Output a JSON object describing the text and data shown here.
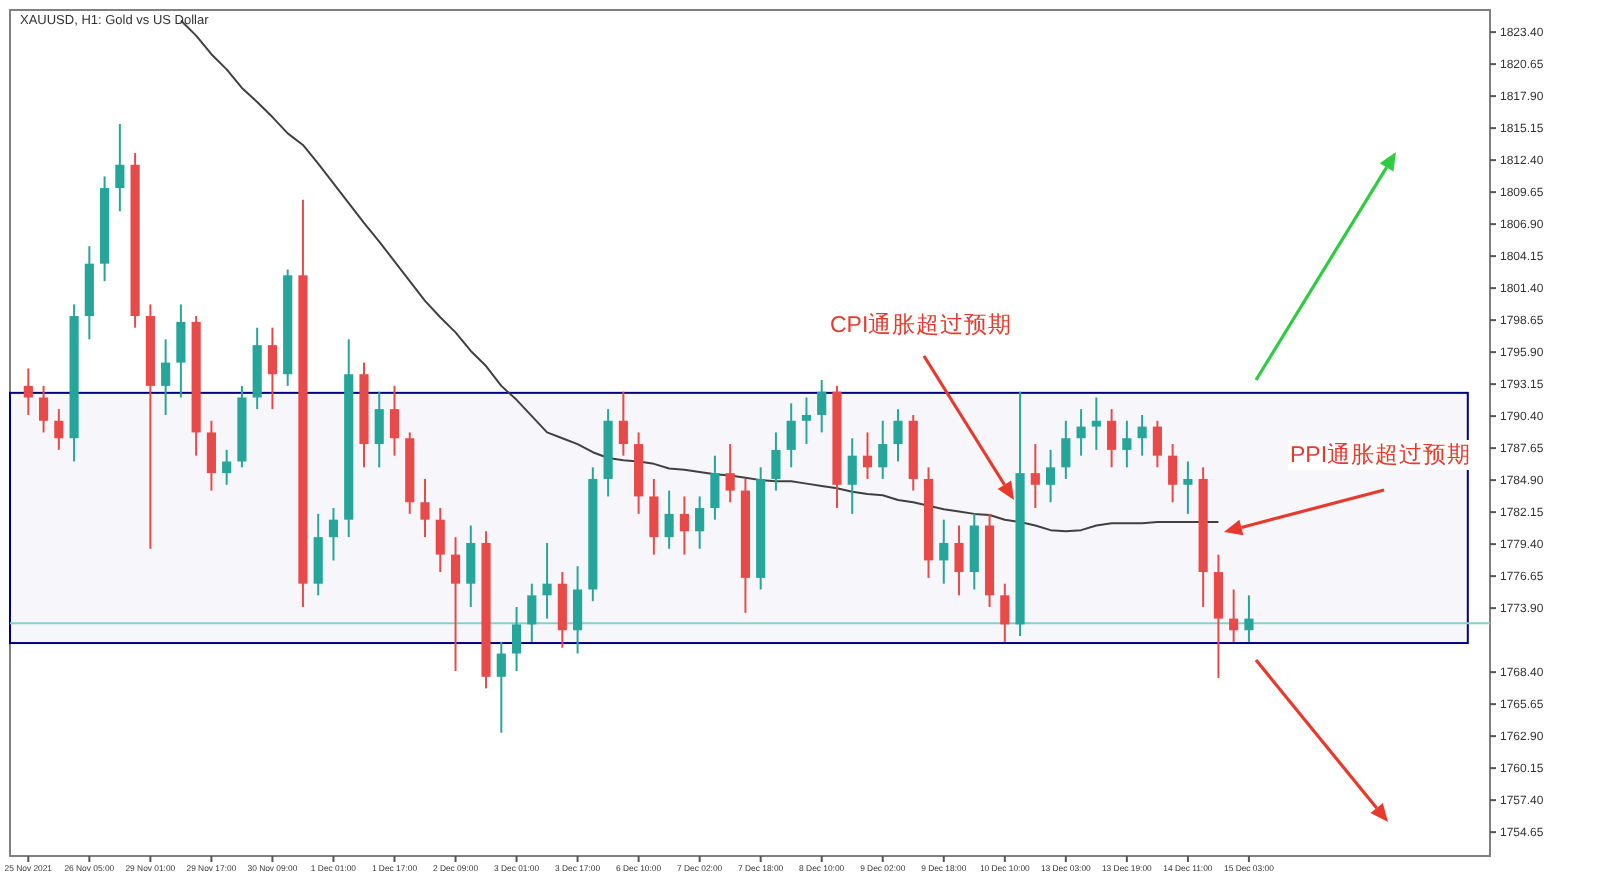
{
  "chart_data": {
    "type": "candlestick",
    "title": "XAUUSD, H1: Gold vs US Dollar",
    "categories": [
      "25 Nov 2021",
      null,
      null,
      null,
      "26 Nov 05:00",
      null,
      null,
      null,
      "29 Nov 01:00",
      null,
      null,
      null,
      "29 Nov 17:00",
      null,
      null,
      null,
      "30 Nov 09:00",
      null,
      null,
      null,
      "1 Dec 01:00",
      null,
      null,
      null,
      "1 Dec 17:00",
      null,
      null,
      null,
      "2 Dec 09:00",
      null,
      null,
      null,
      "3 Dec 01:00",
      null,
      null,
      null,
      "3 Dec 17:00",
      null,
      null,
      null,
      "6 Dec 10:00",
      null,
      null,
      null,
      "7 Dec 02:00",
      null,
      null,
      null,
      "7 Dec 18:00",
      null,
      null,
      null,
      "8 Dec 10:00",
      null,
      null,
      null,
      "9 Dec 02:00",
      null,
      null,
      null,
      "9 Dec 18:00",
      null,
      null,
      null,
      "10 Dec 10:00",
      null,
      null,
      null,
      "13 Dec 03:00",
      null,
      null,
      null,
      "13 Dec 19:00",
      null,
      null,
      null,
      "14 Dec 11:00",
      null,
      null,
      null,
      "15 Dec 03:00",
      null,
      null,
      null,
      null,
      null,
      null,
      null,
      null,
      null,
      null,
      null,
      null,
      null,
      null,
      null
    ],
    "ohlc": [
      [
        1793,
        1794.5,
        1790.5,
        1792
      ],
      [
        1792,
        1793,
        1789,
        1790
      ],
      [
        1790,
        1791,
        1787.5,
        1788.5
      ],
      [
        1788.5,
        1800,
        1786.5,
        1799
      ],
      [
        1799,
        1805,
        1797,
        1803.5
      ],
      [
        1803.5,
        1811,
        1802,
        1810
      ],
      [
        1810,
        1815.5,
        1808,
        1812
      ],
      [
        1812,
        1813,
        1798,
        1799
      ],
      [
        1799,
        1800,
        1779,
        1793
      ],
      [
        1793,
        1797,
        1790.5,
        1795
      ],
      [
        1795,
        1800,
        1792,
        1798.5
      ],
      [
        1798.5,
        1799,
        1787,
        1789
      ],
      [
        1789,
        1790,
        1784,
        1785.5
      ],
      [
        1785.5,
        1787.5,
        1784.5,
        1786.5
      ],
      [
        1786.5,
        1793,
        1786,
        1792
      ],
      [
        1792,
        1798,
        1791,
        1796.5
      ],
      [
        1796.5,
        1798,
        1791,
        1794
      ],
      [
        1794,
        1803,
        1793,
        1802.5
      ],
      [
        1802.5,
        1809,
        1774,
        1776
      ],
      [
        1776,
        1782,
        1775,
        1780
      ],
      [
        1780,
        1782.5,
        1778,
        1781.5
      ],
      [
        1781.5,
        1797,
        1780,
        1794
      ],
      [
        1794,
        1795,
        1786,
        1788
      ],
      [
        1788,
        1792.5,
        1786,
        1791
      ],
      [
        1791,
        1793,
        1787,
        1788.5
      ],
      [
        1788.5,
        1789,
        1782,
        1783
      ],
      [
        1783,
        1785,
        1780,
        1781.5
      ],
      [
        1781.5,
        1782.5,
        1777,
        1778.5
      ],
      [
        1778.5,
        1780,
        1768.5,
        1776
      ],
      [
        1776,
        1781,
        1774,
        1779.5
      ],
      [
        1779.5,
        1780.5,
        1767,
        1768
      ],
      [
        1768,
        1771,
        1763.2,
        1770
      ],
      [
        1770,
        1774,
        1768.5,
        1772.5
      ],
      [
        1772.5,
        1776,
        1771,
        1775
      ],
      [
        1775,
        1779.5,
        1773,
        1776
      ],
      [
        1776,
        1777,
        1770.5,
        1772
      ],
      [
        1772,
        1777.5,
        1770,
        1775.5
      ],
      [
        1775.5,
        1786,
        1774.5,
        1785
      ],
      [
        1785,
        1791,
        1783.5,
        1790
      ],
      [
        1790,
        1792.5,
        1787,
        1788
      ],
      [
        1788,
        1789,
        1782,
        1783.5
      ],
      [
        1783.5,
        1785,
        1778.5,
        1780
      ],
      [
        1780,
        1784,
        1779,
        1782
      ],
      [
        1782,
        1783.5,
        1778.5,
        1780.5
      ],
      [
        1780.5,
        1783.5,
        1779,
        1782.5
      ],
      [
        1782.5,
        1787,
        1781.5,
        1785.5
      ],
      [
        1785.5,
        1788,
        1783,
        1784
      ],
      [
        1784,
        1785,
        1773.5,
        1776.5
      ],
      [
        1776.5,
        1786,
        1775.5,
        1785
      ],
      [
        1785,
        1789,
        1784,
        1787.5
      ],
      [
        1787.5,
        1791.5,
        1786,
        1790
      ],
      [
        1790,
        1792,
        1788,
        1790.5
      ],
      [
        1790.5,
        1793.5,
        1789,
        1792.5
      ],
      [
        1792.5,
        1793,
        1782.5,
        1784.5
      ],
      [
        1784.5,
        1788.5,
        1782,
        1787
      ],
      [
        1787,
        1789,
        1785,
        1786
      ],
      [
        1786,
        1790,
        1785,
        1788
      ],
      [
        1788,
        1791,
        1786.5,
        1790
      ],
      [
        1790,
        1790.5,
        1784,
        1785
      ],
      [
        1785,
        1786,
        1776.5,
        1778
      ],
      [
        1778,
        1781.5,
        1776,
        1779.5
      ],
      [
        1779.5,
        1781,
        1775,
        1777
      ],
      [
        1777,
        1782,
        1775.5,
        1781
      ],
      [
        1781,
        1782,
        1774,
        1775
      ],
      [
        1775,
        1776,
        1771,
        1772.5
      ],
      [
        1772.5,
        1792.5,
        1771.5,
        1785.5
      ],
      [
        1785.5,
        1788,
        1782.5,
        1784.5
      ],
      [
        1784.5,
        1787.5,
        1783,
        1786
      ],
      [
        1786,
        1790,
        1785,
        1788.5
      ],
      [
        1788.5,
        1791,
        1787,
        1789.5
      ],
      [
        1789.5,
        1792,
        1787.5,
        1790
      ],
      [
        1790,
        1791,
        1786,
        1787.5
      ],
      [
        1787.5,
        1790,
        1786,
        1788.5
      ],
      [
        1788.5,
        1790.5,
        1787,
        1789.5
      ],
      [
        1789.5,
        1790,
        1786,
        1787
      ],
      [
        1787,
        1788,
        1783,
        1784.5
      ],
      [
        1784.5,
        1786.5,
        1782,
        1785
      ],
      [
        1785,
        1786,
        1774,
        1777
      ],
      [
        1777,
        1778.5,
        1767.9,
        1773
      ],
      [
        1773,
        1775.5,
        1771,
        1772
      ],
      [
        1772,
        1775,
        1771,
        1773
      ],
      null,
      null,
      null,
      null,
      null,
      null,
      null,
      null,
      null,
      null,
      null,
      null,
      null,
      null,
      null
    ],
    "series": [
      {
        "type": "line",
        "color": "#404040",
        "values": [
          null,
          null,
          null,
          null,
          null,
          null,
          null,
          null,
          null,
          null,
          1824.4,
          1823.1,
          1821.5,
          1820.2,
          1818.6,
          1817.4,
          1816.1,
          1814.7,
          1813.7,
          1812.1,
          1810.4,
          1808.7,
          1807.0,
          1805.4,
          1803.7,
          1802.0,
          1800.3,
          1798.9,
          1797.6,
          1796.0,
          1794.7,
          1793.0,
          1791.8,
          1790.4,
          1789.0,
          1788.5,
          1788.0,
          1787.3,
          1786.8,
          1786.6,
          1786.5,
          1786.3,
          1785.9,
          1785.8,
          1785.6,
          1785.4,
          1785.3,
          1785.1,
          1784.9,
          1784.8,
          1784.8,
          1784.6,
          1784.4,
          1784.2,
          1783.9,
          1783.7,
          1783.6,
          1783.2,
          1783.0,
          1782.7,
          1782.4,
          1782.2,
          1782.0,
          1781.9,
          1781.5,
          1781.3,
          1781.0,
          1780.6,
          1780.5,
          1780.6,
          1781.0,
          1781.2,
          1781.2,
          1781.2,
          1781.3,
          1781.3,
          1781.3,
          1781.3,
          1781.3,
          null,
          null,
          null,
          null,
          null,
          null,
          null,
          null,
          null,
          null,
          null,
          null,
          null,
          null,
          null,
          null,
          null
        ]
      }
    ],
    "ylim": [
      1752.6,
      1825.3
    ],
    "yticks": [
      {
        "value": 1754.65,
        "label": "1754.65"
      },
      {
        "value": 1757.4,
        "label": "1757.40"
      },
      {
        "value": 1760.15,
        "label": "1760.15"
      },
      {
        "value": 1762.9,
        "label": "1762.90"
      },
      {
        "value": 1765.65,
        "label": "1765.65"
      },
      {
        "value": 1768.4,
        "label": "1768.40"
      },
      {
        "value": 1773.9,
        "label": "1773.90"
      },
      {
        "value": 1776.65,
        "label": "1776.65"
      },
      {
        "value": 1779.4,
        "label": "1779.40"
      },
      {
        "value": 1782.15,
        "label": "1782.15"
      },
      {
        "value": 1784.9,
        "label": "1784.90"
      },
      {
        "value": 1787.65,
        "label": "1787.65"
      },
      {
        "value": 1790.4,
        "label": "1790.40"
      },
      {
        "value": 1793.15,
        "label": "1793.15"
      },
      {
        "value": 1795.9,
        "label": "1795.90"
      },
      {
        "value": 1798.65,
        "label": "1798.65"
      },
      {
        "value": 1801.4,
        "label": "1801.40"
      },
      {
        "value": 1804.15,
        "label": "1804.15"
      },
      {
        "value": 1806.9,
        "label": "1806.90"
      },
      {
        "value": 1809.65,
        "label": "1809.65"
      },
      {
        "value": 1812.4,
        "label": "1812.40"
      },
      {
        "value": 1815.15,
        "label": "1815.15"
      },
      {
        "value": 1817.9,
        "label": "1817.90"
      },
      {
        "value": 1820.65,
        "label": "1820.65"
      },
      {
        "value": 1823.4,
        "label": "1823.40"
      }
    ],
    "ref_lines": [
      {
        "axis": "y",
        "value": 1772.6,
        "color": "#7fd3c8"
      }
    ],
    "bands": [
      {
        "axis": "y",
        "from": 1770.9,
        "to": 1792.4,
        "color": "#000080"
      }
    ],
    "annotations": [
      "CPI通胀超过预期",
      "PPI通胀超过预期"
    ],
    "grid": false
  }
}
